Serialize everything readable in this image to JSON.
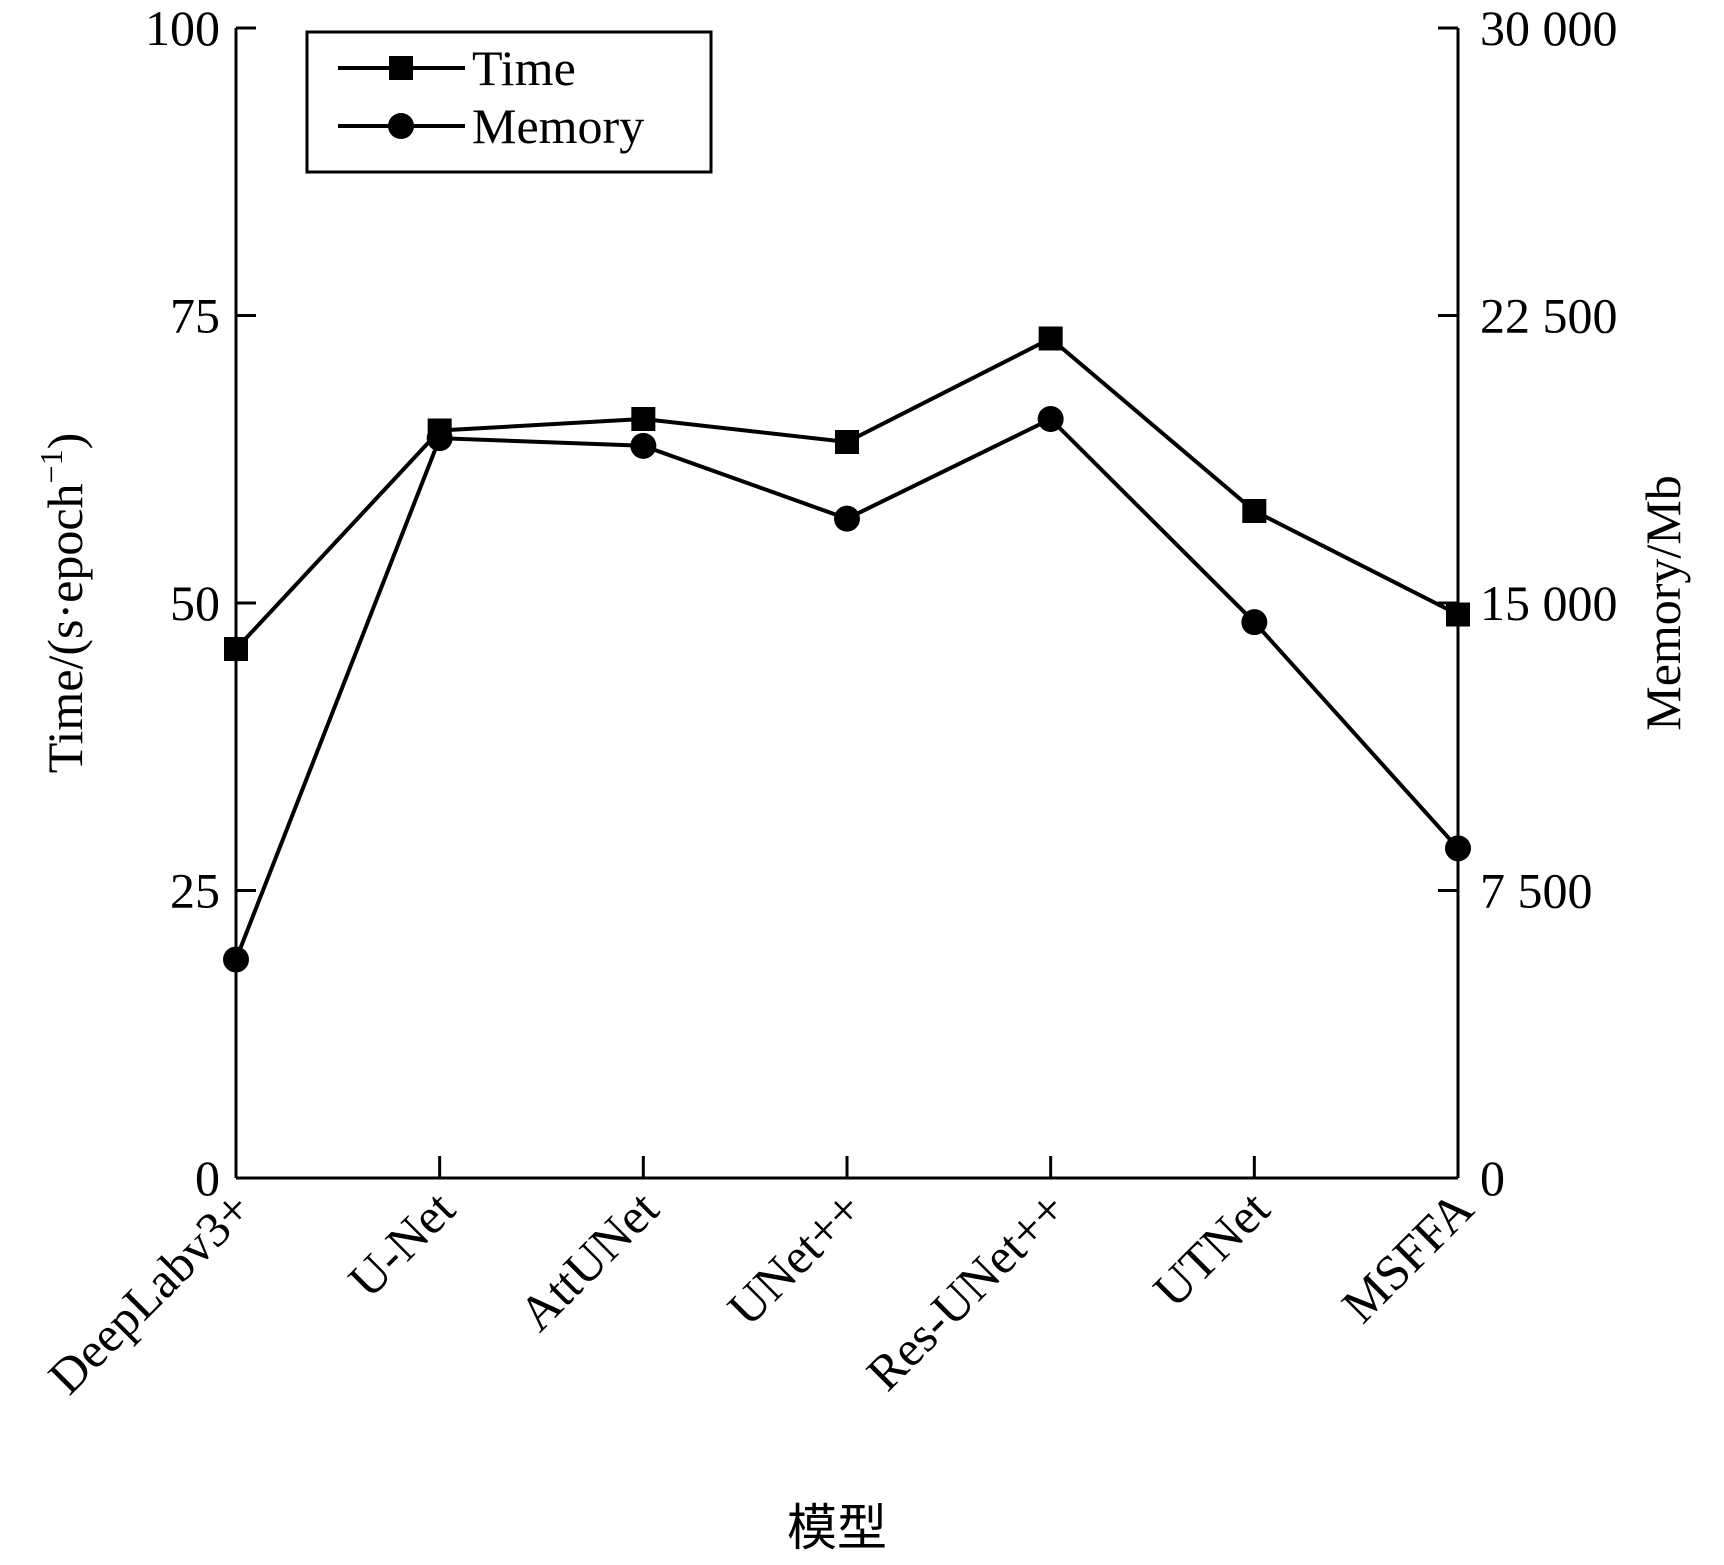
{
  "chart_data": {
    "type": "line",
    "categories": [
      "DeepLabv3+",
      "U-Net",
      "AttUNet",
      "UNet++",
      "Res-UNet++",
      "UTNet",
      "MSFFA"
    ],
    "xlabel": "模型",
    "ylabel_left": "Time/(s·epoch",
    "ylabel_left_sup": "−1",
    "ylabel_left_close": ")",
    "ylabel_right": "Memory/Mb",
    "ylim_left": [
      0,
      100
    ],
    "ylim_right": [
      0,
      30000
    ],
    "yticks_left": [
      "0",
      "25",
      "50",
      "75",
      "100"
    ],
    "yticks_right": [
      "0",
      "7 500",
      "15 000",
      "22 500",
      "30 000"
    ],
    "legend_position": "top-left",
    "grid": false,
    "series": [
      {
        "name": "Time",
        "axis": "left",
        "marker": "square",
        "values": [
          46,
          65,
          66,
          64,
          73,
          58,
          49
        ]
      },
      {
        "name": "Memory",
        "axis": "right",
        "marker": "circle",
        "values": [
          5700,
          19300,
          19100,
          17200,
          19800,
          14500,
          8600
        ]
      }
    ]
  }
}
